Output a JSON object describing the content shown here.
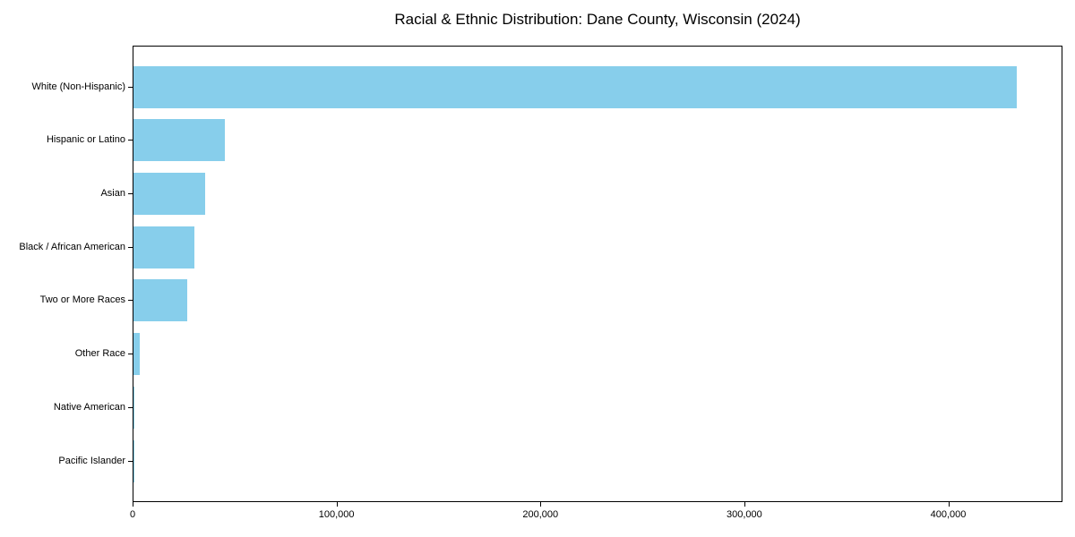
{
  "title": "Racial & Ethnic Distribution: Dane County, Wisconsin (2024)",
  "colors": {
    "bar": "#87CEEB",
    "axis": "#000000",
    "text": "#000000",
    "background": "#ffffff"
  },
  "chart_data": {
    "type": "bar",
    "orientation": "horizontal",
    "title": "Racial & Ethnic Distribution: Dane County, Wisconsin (2024)",
    "xlabel": "",
    "ylabel": "",
    "categories": [
      "White (Non-Hispanic)",
      "Hispanic or Latino",
      "Asian",
      "Black / African American",
      "Two or More Races",
      "Other Race",
      "Native American",
      "Pacific Islander"
    ],
    "values": [
      434000,
      45000,
      35000,
      30000,
      26500,
      3000,
      500,
      200
    ],
    "xlim": [
      0,
      456000
    ],
    "x_ticks": [
      0,
      100000,
      200000,
      300000,
      400000
    ],
    "x_tick_labels": [
      "0",
      "100,000",
      "200,000",
      "300,000",
      "400,000"
    ],
    "bar_color": "#87CEEB",
    "grid": false,
    "legend": null
  }
}
